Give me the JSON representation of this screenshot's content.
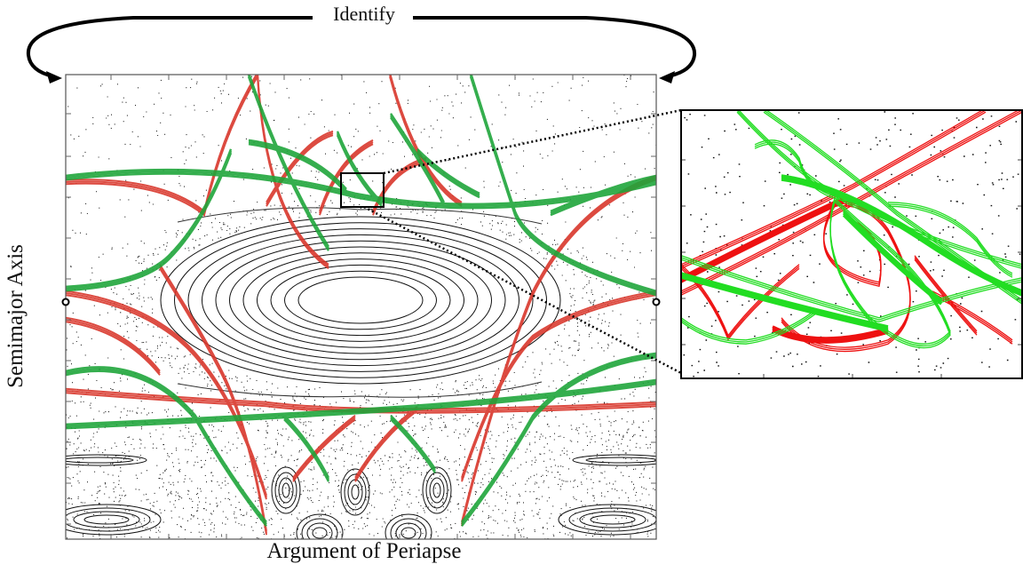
{
  "annotation": {
    "identify_label": "Identify"
  },
  "axes": {
    "xlabel": "Argument of Periapse",
    "ylabel": "Semimajor Axis"
  },
  "colors": {
    "stable_manifold": "#1fa53a",
    "unstable_manifold": "#d9362b",
    "zoom_green": "#22dd22",
    "zoom_red": "#ee1111",
    "poincare_points": "#222222",
    "frame": "#000000"
  },
  "icons": [
    "identify-arrow-icon",
    "fixed-point-marker-icon",
    "zoom-connector-icon"
  ]
}
